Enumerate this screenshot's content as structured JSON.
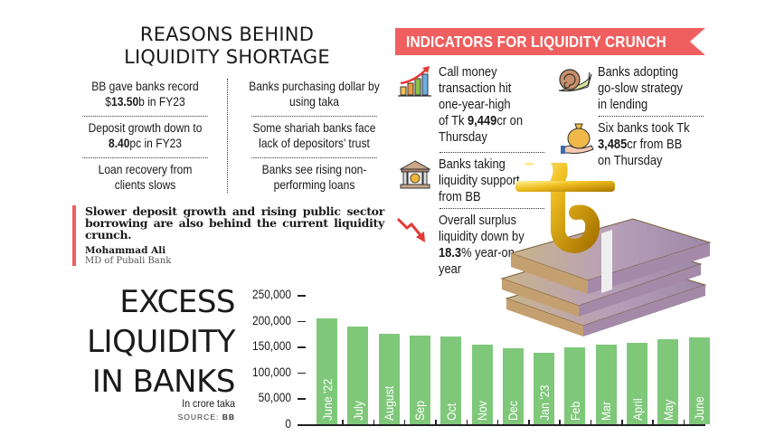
{
  "reasons": {
    "title_line1": "REASONS BEHIND",
    "title_line2": "LIQUIDITY SHORTAGE",
    "items": [
      {
        "pre": "BB gave banks record",
        "pre2": "$",
        "bold": "13.50",
        "post": "b in FY23"
      },
      {
        "pre": "Banks purchasing dollar by",
        "pre2": "using taka",
        "bold": "",
        "post": ""
      },
      {
        "pre": "Deposit growth down to",
        "pre2": "",
        "bold": "8.40",
        "post": "pc in FY23"
      },
      {
        "pre": "Some shariah banks face",
        "pre2": "lack of depositors’ trust",
        "bold": "",
        "post": ""
      },
      {
        "pre": "Loan recovery from",
        "pre2": "clients slows",
        "bold": "",
        "post": ""
      },
      {
        "pre": "Banks see rising non-",
        "pre2": "performing loans",
        "bold": "",
        "post": ""
      }
    ]
  },
  "quote": {
    "text": "Slower deposit growth and rising public sector borrowing are also behind the current liquidity crunch.",
    "author": "Mohammad Ali",
    "role": "MD of Pubali Bank",
    "accent_color": "#ef5f5f"
  },
  "indicators": {
    "title": "INDICATORS FOR LIQUIDITY CRUNCH",
    "banner_color": "#ef5f5f",
    "items": [
      {
        "icon": "rising-bar-chart-icon",
        "l1": "Call money",
        "l2": "transaction hit",
        "l3": "one-year-high",
        "l4_pre": "of Tk ",
        "l4_bold": "9,449",
        "l4_post": "cr on",
        "l5": "Thursday"
      },
      {
        "icon": "bank-building-icon",
        "l1": "Banks taking",
        "l2": "liquidity support",
        "l3": "from BB"
      },
      {
        "icon": "falling-arrow-icon",
        "l1": "Overall surplus",
        "l2": "liquidity down by",
        "l3_bold": "18.3",
        "l3_post": "% year-on-",
        "l4": "year"
      },
      {
        "icon": "snail-icon",
        "l1": "Banks adopting",
        "l2": "go-slow strategy",
        "l3": "in lending"
      },
      {
        "icon": "money-bag-hand-icon",
        "l1": "Six banks took Tk",
        "l2_bold": "3,485",
        "l2_post": "cr from BB",
        "l3": "on Thursday"
      }
    ]
  },
  "excess": {
    "title_line1": "EXCESS",
    "title_line2": "LIQUIDITY",
    "title_line3": "IN BANKS",
    "unit": "In crore taka",
    "source_pre": "SOURCE: ",
    "source_bold": "BB"
  },
  "chart_data": {
    "type": "bar",
    "title": "EXCESS LIQUIDITY IN BANKS",
    "subtitle": "In crore taka",
    "source": "BB",
    "xlabel": "",
    "ylabel": "In crore taka",
    "ylim": [
      0,
      250000
    ],
    "yticks": [
      "250,000",
      "200,000",
      "150,000",
      "100,000",
      "50,000",
      "0"
    ],
    "categories": [
      "June '22",
      "July",
      "August",
      "Sep",
      "Oct",
      "Nov",
      "Dec",
      "Jan '23",
      "Feb",
      "Mar",
      "April",
      "May",
      "June"
    ],
    "values": [
      204000,
      189000,
      175000,
      171000,
      170000,
      154000,
      147000,
      138000,
      149000,
      154000,
      157000,
      164000,
      168000
    ],
    "bar_color": "#7fc87a",
    "grid": false,
    "legend": null
  }
}
